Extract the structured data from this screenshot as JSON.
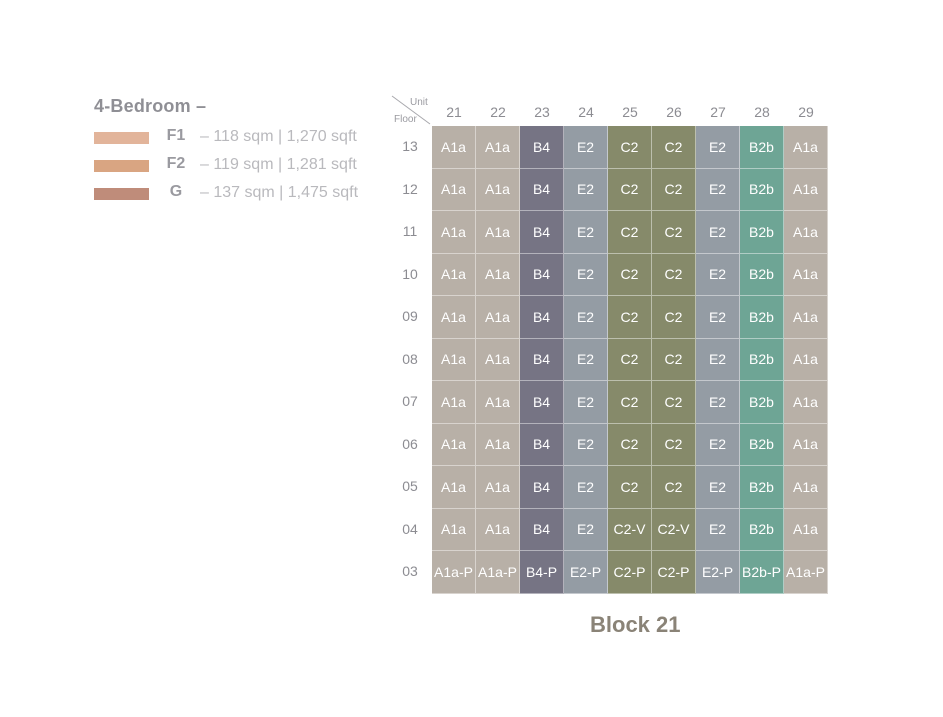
{
  "legend": {
    "title": "4-Bedroom –",
    "items": [
      {
        "code": "F1",
        "area": "– 118 sqm | 1,270 sqft",
        "color": "#e2b49a"
      },
      {
        "code": "F2",
        "area": "– 119 sqm | 1,281 sqft",
        "color": "#d9a582"
      },
      {
        "code": "G",
        "area": "– 137 sqm | 1,475 sqft",
        "color": "#bf8c7a"
      }
    ]
  },
  "corner": {
    "unit_label": "Unit",
    "floor_label": "Floor"
  },
  "units": [
    "21",
    "22",
    "23",
    "24",
    "25",
    "26",
    "27",
    "28",
    "29"
  ],
  "floors": [
    "13",
    "12",
    "11",
    "10",
    "09",
    "08",
    "07",
    "06",
    "05",
    "04",
    "03"
  ],
  "grid": [
    [
      "A1a",
      "A1a",
      "B4",
      "E2",
      "C2",
      "C2",
      "E2",
      "B2b",
      "A1a"
    ],
    [
      "A1a",
      "A1a",
      "B4",
      "E2",
      "C2",
      "C2",
      "E2",
      "B2b",
      "A1a"
    ],
    [
      "A1a",
      "A1a",
      "B4",
      "E2",
      "C2",
      "C2",
      "E2",
      "B2b",
      "A1a"
    ],
    [
      "A1a",
      "A1a",
      "B4",
      "E2",
      "C2",
      "C2",
      "E2",
      "B2b",
      "A1a"
    ],
    [
      "A1a",
      "A1a",
      "B4",
      "E2",
      "C2",
      "C2",
      "E2",
      "B2b",
      "A1a"
    ],
    [
      "A1a",
      "A1a",
      "B4",
      "E2",
      "C2",
      "C2",
      "E2",
      "B2b",
      "A1a"
    ],
    [
      "A1a",
      "A1a",
      "B4",
      "E2",
      "C2",
      "C2",
      "E2",
      "B2b",
      "A1a"
    ],
    [
      "A1a",
      "A1a",
      "B4",
      "E2",
      "C2",
      "C2",
      "E2",
      "B2b",
      "A1a"
    ],
    [
      "A1a",
      "A1a",
      "B4",
      "E2",
      "C2",
      "C2",
      "E2",
      "B2b",
      "A1a"
    ],
    [
      "A1a",
      "A1a",
      "B4",
      "E2",
      "C2-V",
      "C2-V",
      "E2",
      "B2b",
      "A1a"
    ],
    [
      "A1a-P",
      "A1a-P",
      "B4-P",
      "E2-P",
      "C2-P",
      "C2-P",
      "E2-P",
      "B2b-P",
      "A1a-P"
    ]
  ],
  "type_colors": {
    "A1a": "#b8b0a7",
    "B4": "#767484",
    "E2": "#949ca4",
    "C2": "#868a6a",
    "B2b": "#6ea595"
  },
  "block_title": "Block 21"
}
